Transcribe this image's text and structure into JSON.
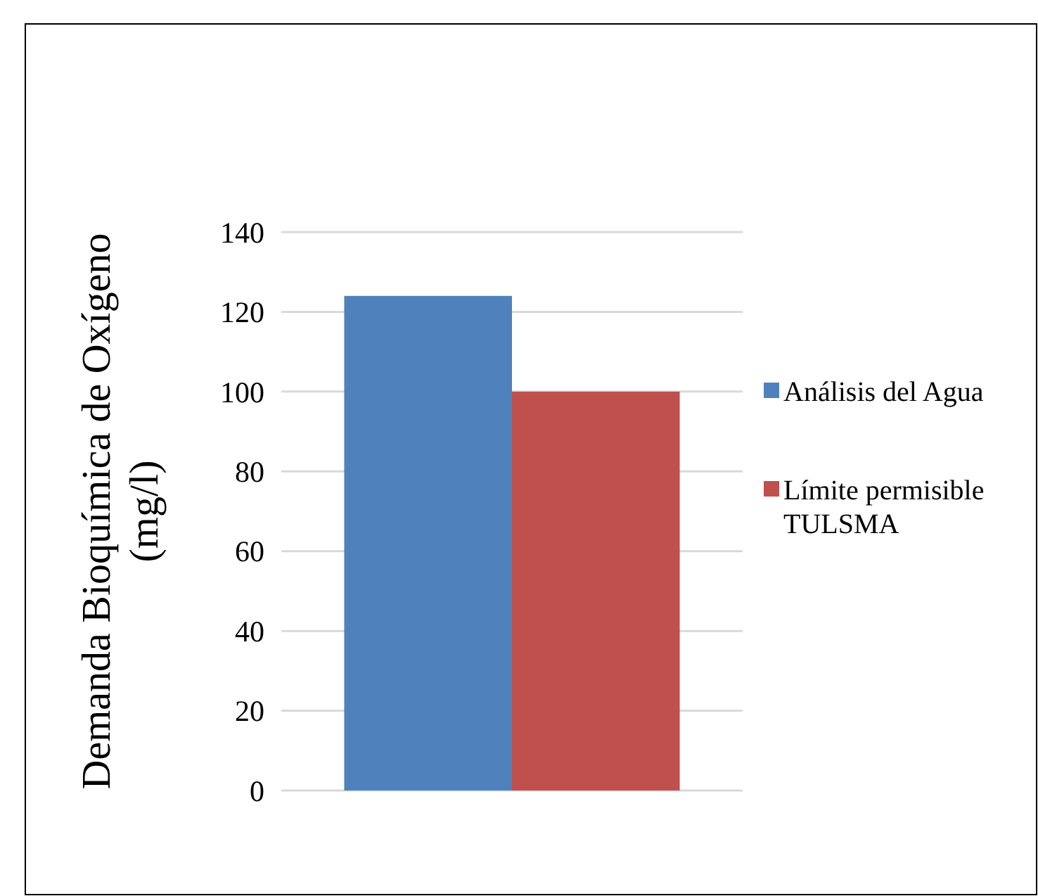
{
  "chart_data": {
    "type": "bar",
    "ylabel": "Demanda Bioquímica de Oxígeno (mg/l)",
    "categories": [
      null
    ],
    "series": [
      {
        "name": "Análisis del Agua",
        "color": "#4f81bd",
        "values": [
          124
        ]
      },
      {
        "name": "Límite permisible TULSMA",
        "color": "#c0504d",
        "values": [
          100
        ]
      }
    ],
    "ylim": [
      0,
      140
    ],
    "yticks": [
      0,
      20,
      40,
      60,
      80,
      100,
      120,
      140
    ],
    "grid": "y",
    "legend": "right"
  }
}
